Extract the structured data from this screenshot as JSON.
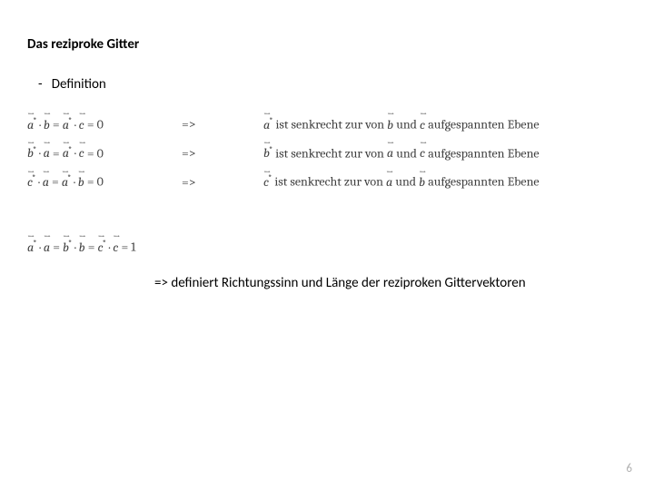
{
  "title": "Das reziproke Gitter",
  "bullet_dash": "-",
  "bullet_text": "Definition",
  "rows": [
    {
      "lhs": {
        "v1": "a",
        "v1s": true,
        "v2": "b",
        "v2s": false,
        "mid": " = ",
        "v3": "a",
        "v3s": true,
        "v4": "c",
        "v4s": false,
        "rhs": " = 0"
      },
      "arrow": "=>",
      "starvec": "a",
      "t1": " ist senkrecht zur von ",
      "sv1": "b",
      "t2": " und ",
      "sv2": "c",
      "t3": " aufgespannten Ebene"
    },
    {
      "lhs": {
        "v1": "b",
        "v1s": true,
        "v2": "a",
        "v2s": false,
        "mid": " = ",
        "v3": "a",
        "v3s": true,
        "v4": "c",
        "v4s": false,
        "rhs": " = 0"
      },
      "arrow": "=>",
      "starvec": "b",
      "t1": " ist senkrecht zur von ",
      "sv1": "a",
      "t2": " und ",
      "sv2": "c",
      "t3": " aufgespannten Ebene"
    },
    {
      "lhs": {
        "v1": "c",
        "v1s": true,
        "v2": "a",
        "v2s": false,
        "mid": " = ",
        "v3": "a",
        "v3s": true,
        "v4": "b",
        "v4s": false,
        "rhs": " = 0"
      },
      "arrow": "=>",
      "starvec": "c",
      "t1": " ist senkrecht zur von ",
      "sv1": "a",
      "t2": " und ",
      "sv2": "b",
      "t3": " aufgespannten Ebene"
    }
  ],
  "eq2_rhs": " = 1",
  "summary": "=> definiert Richtungssinn und Länge der reziproken Gittervektoren",
  "pagenum": "6"
}
